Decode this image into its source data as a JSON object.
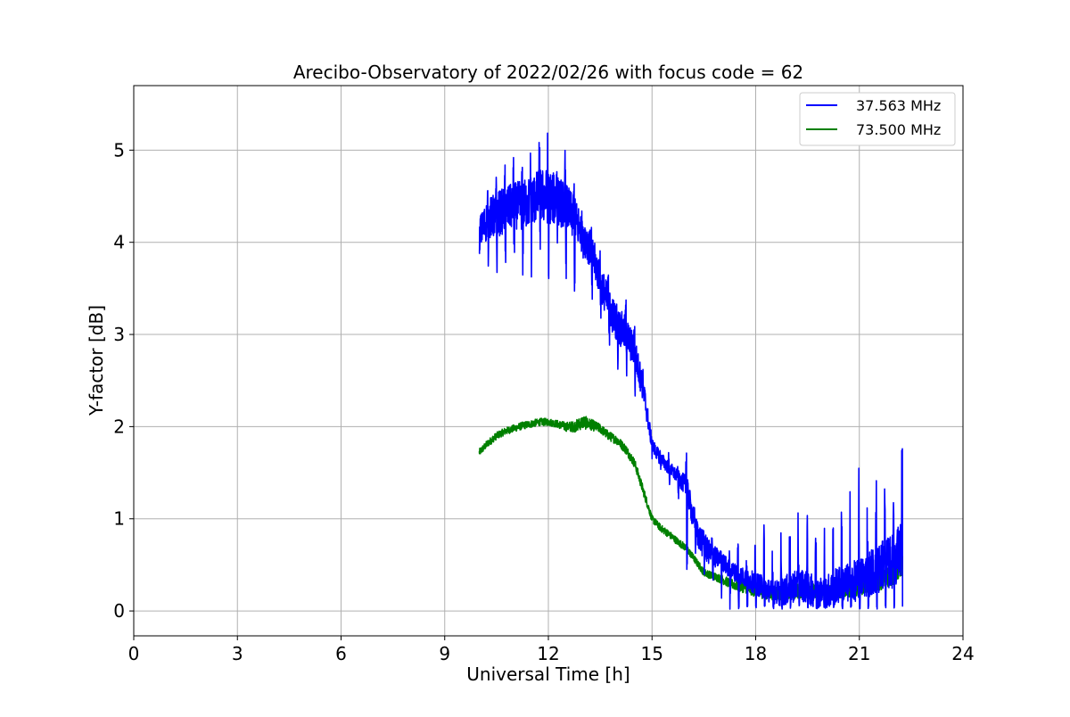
{
  "chart_data": {
    "type": "line",
    "title": "Arecibo-Observatory of 2022/02/26 with focus code = 62",
    "xlabel": "Universal Time [h]",
    "ylabel": "Y-factor [dB]",
    "xlim": [
      0,
      24
    ],
    "ylim": [
      -0.27,
      5.7
    ],
    "xticks": [
      0,
      3,
      6,
      9,
      12,
      15,
      18,
      21,
      24
    ],
    "yticks": [
      0,
      1,
      2,
      3,
      4,
      5
    ],
    "xtick_labels": [
      "0",
      "3",
      "6",
      "9",
      "12",
      "15",
      "18",
      "21",
      "24"
    ],
    "ytick_labels": [
      "0",
      "1",
      "2",
      "3",
      "4",
      "5"
    ],
    "grid": true,
    "legend_position": "top-right",
    "series": [
      {
        "name": "37.563 MHz",
        "color": "#0000ff",
        "x": [
          10.0,
          10.25,
          10.5,
          10.75,
          11.0,
          11.25,
          11.5,
          11.75,
          12.0,
          12.25,
          12.5,
          12.75,
          13.0,
          13.25,
          13.5,
          13.75,
          14.0,
          14.25,
          14.5,
          14.75,
          15.0,
          15.25,
          15.5,
          15.75,
          16.0,
          16.25,
          16.5,
          16.75,
          17.0,
          17.25,
          17.5,
          17.75,
          18.0,
          18.25,
          18.5,
          18.75,
          19.0,
          19.25,
          19.5,
          19.75,
          20.0,
          20.25,
          20.5,
          20.75,
          21.0,
          21.25,
          21.5,
          21.75,
          22.0,
          22.25
        ],
        "y": [
          4.1,
          4.25,
          4.3,
          4.35,
          4.4,
          4.4,
          4.45,
          4.5,
          4.5,
          4.45,
          4.4,
          4.25,
          4.1,
          3.9,
          3.6,
          3.3,
          3.1,
          3.0,
          2.8,
          2.4,
          1.8,
          1.65,
          1.55,
          1.45,
          1.35,
          0.9,
          0.7,
          0.6,
          0.55,
          0.45,
          0.4,
          0.35,
          0.3,
          0.25,
          0.2,
          0.2,
          0.25,
          0.3,
          0.25,
          0.2,
          0.2,
          0.25,
          0.3,
          0.3,
          0.35,
          0.4,
          0.45,
          0.5,
          0.55,
          0.7
        ],
        "noise": [
          0.35,
          0.45,
          0.5,
          0.5,
          0.5,
          0.55,
          0.55,
          0.6,
          0.6,
          0.55,
          0.5,
          0.5,
          0.45,
          0.4,
          0.4,
          0.4,
          0.4,
          0.4,
          0.35,
          0.3,
          0.15,
          0.15,
          0.15,
          0.15,
          0.25,
          0.3,
          0.3,
          0.25,
          0.2,
          0.2,
          0.2,
          0.2,
          0.25,
          0.25,
          0.25,
          0.3,
          0.35,
          0.35,
          0.35,
          0.35,
          0.35,
          0.4,
          0.4,
          0.45,
          0.45,
          0.5,
          0.55,
          0.55,
          0.6,
          0.65
        ],
        "spike_amp": [
          0.3,
          0.35,
          0.35,
          0.45,
          0.55,
          0.55,
          0.55,
          0.6,
          0.65,
          0.6,
          0.55,
          0.55,
          0.45,
          0.4,
          0.35,
          0.35,
          0.35,
          0.35,
          0.45,
          0.2,
          0.1,
          0.1,
          0.15,
          0.1,
          0.8,
          0.3,
          0.3,
          0.25,
          0.3,
          0.3,
          0.6,
          0.45,
          0.55,
          0.9,
          1.0,
          0.8,
          1.0,
          1.1,
          1.2,
          1.25,
          1.3,
          1.35,
          1.4,
          1.45,
          1.5,
          1.55,
          1.55,
          1.6,
          1.6,
          1.5
        ]
      },
      {
        "name": "73.500 MHz",
        "color": "#008000",
        "x": [
          10.0,
          10.25,
          10.5,
          10.75,
          11.0,
          11.25,
          11.5,
          11.75,
          12.0,
          12.25,
          12.5,
          12.75,
          13.0,
          13.25,
          13.5,
          13.75,
          14.0,
          14.25,
          14.5,
          14.75,
          15.0,
          15.25,
          15.5,
          15.75,
          16.0,
          16.25,
          16.5,
          16.75,
          17.0,
          17.25,
          17.5,
          17.75,
          18.0,
          18.25,
          18.5,
          18.75,
          19.0,
          19.25,
          19.5,
          19.75,
          20.0,
          20.25,
          20.5,
          20.75,
          21.0,
          21.25,
          21.5,
          21.75,
          22.0,
          22.25
        ],
        "y": [
          1.72,
          1.82,
          1.9,
          1.95,
          1.98,
          2.01,
          2.03,
          2.05,
          2.05,
          2.03,
          2.0,
          2.0,
          2.05,
          2.02,
          1.98,
          1.9,
          1.85,
          1.75,
          1.6,
          1.3,
          1.0,
          0.9,
          0.83,
          0.75,
          0.68,
          0.55,
          0.42,
          0.38,
          0.35,
          0.3,
          0.27,
          0.25,
          0.22,
          0.2,
          0.2,
          0.2,
          0.2,
          0.22,
          0.22,
          0.22,
          0.22,
          0.22,
          0.22,
          0.23,
          0.25,
          0.28,
          0.3,
          0.35,
          0.4,
          0.5
        ],
        "noise": [
          0.08,
          0.08,
          0.08,
          0.08,
          0.08,
          0.08,
          0.08,
          0.08,
          0.08,
          0.08,
          0.1,
          0.12,
          0.15,
          0.12,
          0.1,
          0.1,
          0.1,
          0.1,
          0.1,
          0.1,
          0.08,
          0.08,
          0.08,
          0.08,
          0.08,
          0.08,
          0.08,
          0.08,
          0.1,
          0.1,
          0.12,
          0.12,
          0.14,
          0.14,
          0.16,
          0.16,
          0.16,
          0.16,
          0.16,
          0.16,
          0.16,
          0.16,
          0.16,
          0.16,
          0.16,
          0.18,
          0.18,
          0.2,
          0.22,
          0.25
        ]
      }
    ]
  }
}
